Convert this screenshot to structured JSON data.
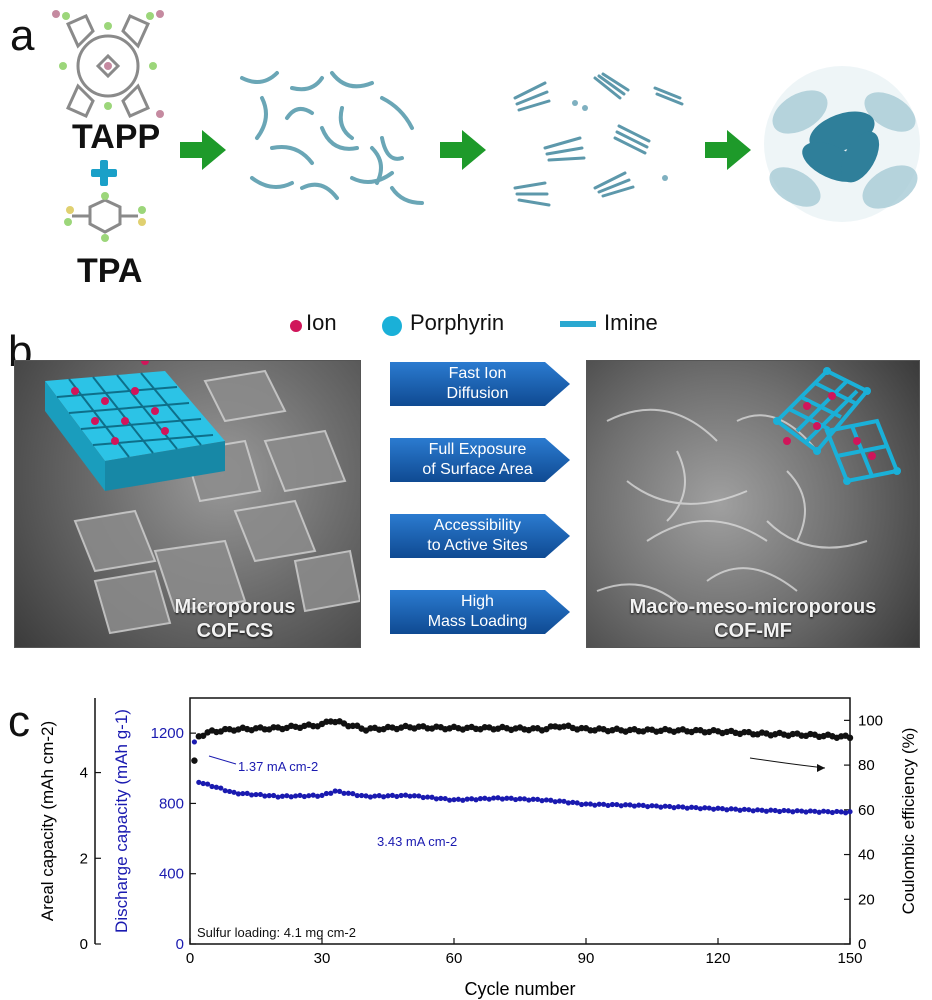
{
  "panel_a": {
    "letter": "a",
    "monomer_1": "TAPP",
    "monomer_2": "TPA"
  },
  "panel_b": {
    "letter": "b",
    "legend": [
      "Ion",
      "Porphyrin",
      "Imine"
    ],
    "left_caption": [
      "Microporous",
      "COF-CS"
    ],
    "right_caption": [
      "Macro-meso-microporous",
      "COF-MF"
    ],
    "features": [
      [
        "Fast Ion",
        "Diffusion"
      ],
      [
        "Full Exposure",
        "of  Surface Area"
      ],
      [
        "Accessibility",
        "to Active Sites"
      ],
      [
        "High",
        "Mass Loading"
      ]
    ]
  },
  "colors": {
    "arrow_green": "#1e9a2a",
    "plus_blue": "#1aa0c8",
    "feature_blue": "#1d5fb0",
    "ion": "#d0155a",
    "porphyrin": "#1ab0d8",
    "imine": "#2aa8d0",
    "discharge": "#1a1ab0",
    "coulombic": "#111111"
  },
  "panel_c": {
    "letter": "c",
    "chart_data": {
      "type": "scatter",
      "xlabel": "Cycle number",
      "ylabel_left_outer": "Areal capacity (mAh cm-2)",
      "ylabel_left_inner": "Discharge capacity (mAh g-1)",
      "ylabel_right": "Coulombic efficiency (%)",
      "xlim": [
        0,
        150
      ],
      "ylim_discharge": [
        0,
        1400
      ],
      "ylim_areal": [
        0,
        5.74
      ],
      "ylim_coulombic": [
        0,
        110
      ],
      "x_ticks": [
        "0",
        "30",
        "60",
        "90",
        "120",
        "150"
      ],
      "discharge_ticks": [
        "0",
        "400",
        "800",
        "1200"
      ],
      "areal_ticks": [
        "0",
        "2",
        "4"
      ],
      "coulombic_ticks": [
        "0",
        "20",
        "40",
        "60",
        "80",
        "100"
      ],
      "annotations": {
        "current_low": "1.37 mA cm-2",
        "current_high": "3.43 mA cm-2",
        "loading": "Sulfur loading: 4.1 mg cm-2"
      },
      "series": [
        {
          "axis": "left",
          "points": [
            [
              1,
              1150
            ],
            [
              2,
              920
            ],
            [
              5,
              900
            ],
            [
              10,
              860
            ],
            [
              20,
              840
            ],
            [
              30,
              845
            ],
            [
              33,
              870
            ],
            [
              40,
              840
            ],
            [
              50,
              845
            ],
            [
              60,
              820
            ],
            [
              70,
              830
            ],
            [
              80,
              820
            ],
            [
              85,
              810
            ],
            [
              90,
              795
            ],
            [
              100,
              790
            ],
            [
              110,
              780
            ],
            [
              120,
              770
            ],
            [
              130,
              760
            ],
            [
              140,
              755
            ],
            [
              150,
              750
            ]
          ]
        },
        {
          "axis": "right",
          "points": [
            [
              1,
              82
            ],
            [
              2,
              93
            ],
            [
              5,
              95
            ],
            [
              10,
              96
            ],
            [
              20,
              96.5
            ],
            [
              30,
              98
            ],
            [
              32,
              100
            ],
            [
              40,
              96
            ],
            [
              50,
              97
            ],
            [
              60,
              96.5
            ],
            [
              70,
              96.5
            ],
            [
              80,
              96
            ],
            [
              84,
              97.5
            ],
            [
              90,
              96
            ],
            [
              100,
              95.5
            ],
            [
              110,
              95.5
            ],
            [
              120,
              95
            ],
            [
              130,
              94
            ],
            [
              140,
              93.5
            ],
            [
              150,
              92.5
            ]
          ]
        }
      ]
    }
  }
}
